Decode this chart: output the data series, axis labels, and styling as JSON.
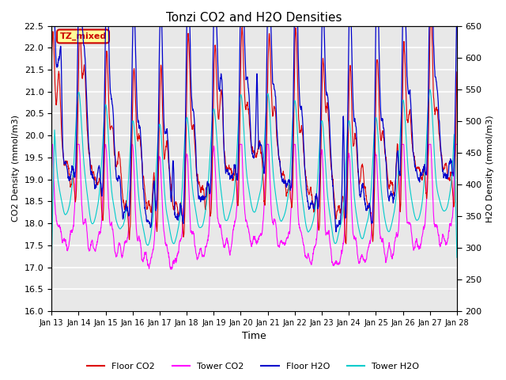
{
  "title": "Tonzi CO2 and H2O Densities",
  "xlabel": "Time",
  "ylabel_left": "CO2 Density (mmol/m3)",
  "ylabel_right": "H2O Density (mmol/m3)",
  "ylim_left": [
    16.0,
    22.5
  ],
  "ylim_right": [
    200,
    650
  ],
  "xtick_labels": [
    "Jan 13",
    "Jan 14",
    "Jan 15",
    "Jan 16",
    "Jan 17",
    "Jan 18",
    "Jan 19",
    "Jan 20",
    "Jan 21",
    "Jan 22",
    "Jan 23",
    "Jan 24",
    "Jan 25",
    "Jan 26",
    "Jan 27",
    "Jan 28"
  ],
  "colors": {
    "floor_co2": "#dd0000",
    "tower_co2": "#ff00ff",
    "floor_h2o": "#0000cc",
    "tower_h2o": "#00cccc"
  },
  "legend_labels": [
    "Floor CO2",
    "Tower CO2",
    "Floor H2O",
    "Tower H2O"
  ],
  "annotation_text": "TZ_mixed",
  "annotation_color": "#cc0000",
  "annotation_bg": "#ffff99",
  "n_points": 2000,
  "background_color": "#e8e8e8",
  "grid_color": "white",
  "figsize": [
    6.4,
    4.8
  ],
  "dpi": 100
}
